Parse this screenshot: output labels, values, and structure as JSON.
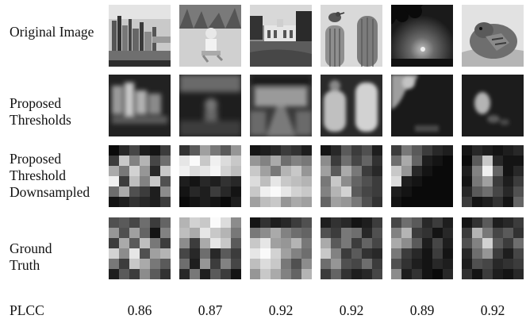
{
  "rows": [
    {
      "label": "Original Image"
    },
    {
      "label": "Proposed\nThresholds"
    },
    {
      "label": "Proposed\nThreshold\nDownsampled"
    },
    {
      "label": "Ground\nTruth"
    }
  ],
  "plcc_label": "PLCC",
  "plcc_values": [
    "0.86",
    "0.87",
    "0.92",
    "0.92",
    "0.89",
    "0.92"
  ],
  "image_subjects": [
    "city-skyline",
    "child-on-beach",
    "building-with-lawn",
    "bird-on-cactus",
    "tree-silhouette-sunset",
    "turtle-close-up"
  ],
  "downsampled_grids": [
    [
      [
        10,
        40,
        70,
        30,
        20,
        60
      ],
      [
        60,
        200,
        130,
        180,
        70,
        110
      ],
      [
        170,
        120,
        210,
        150,
        40,
        200
      ],
      [
        240,
        60,
        190,
        130,
        200,
        80
      ],
      [
        110,
        170,
        80,
        60,
        30,
        140
      ],
      [
        20,
        30,
        50,
        40,
        30,
        60
      ]
    ],
    [
      [
        50,
        90,
        160,
        120,
        90,
        150
      ],
      [
        230,
        250,
        200,
        240,
        220,
        200
      ],
      [
        240,
        220,
        230,
        245,
        210,
        190
      ],
      [
        30,
        20,
        40,
        30,
        50,
        40
      ],
      [
        20,
        40,
        30,
        60,
        40,
        20
      ],
      [
        10,
        20,
        30,
        20,
        10,
        30
      ]
    ],
    [
      [
        20,
        30,
        40,
        60,
        50,
        30
      ],
      [
        150,
        130,
        170,
        110,
        130,
        120
      ],
      [
        200,
        160,
        120,
        180,
        200,
        150
      ],
      [
        220,
        190,
        230,
        200,
        190,
        180
      ],
      [
        200,
        240,
        250,
        230,
        210,
        200
      ],
      [
        160,
        190,
        200,
        150,
        170,
        160
      ]
    ],
    [
      [
        20,
        40,
        90,
        60,
        80,
        30
      ],
      [
        140,
        60,
        110,
        70,
        100,
        50
      ],
      [
        160,
        90,
        170,
        120,
        60,
        40
      ],
      [
        120,
        200,
        140,
        100,
        80,
        60
      ],
      [
        130,
        180,
        210,
        90,
        70,
        60
      ],
      [
        100,
        160,
        150,
        120,
        80,
        50
      ]
    ],
    [
      [
        60,
        120,
        90,
        60,
        40,
        30
      ],
      [
        110,
        170,
        100,
        30,
        20,
        10
      ],
      [
        200,
        150,
        40,
        20,
        10,
        10
      ],
      [
        220,
        30,
        20,
        10,
        10,
        10
      ],
      [
        30,
        20,
        10,
        10,
        10,
        10
      ],
      [
        20,
        10,
        10,
        10,
        10,
        10
      ]
    ],
    [
      [
        20,
        40,
        30,
        20,
        30,
        40
      ],
      [
        10,
        90,
        200,
        40,
        20,
        20
      ],
      [
        30,
        130,
        240,
        100,
        20,
        40
      ],
      [
        20,
        120,
        160,
        60,
        30,
        60
      ],
      [
        40,
        90,
        110,
        70,
        40,
        80
      ],
      [
        60,
        20,
        30,
        50,
        20,
        100
      ]
    ]
  ],
  "ground_truth_grids": [
    [
      [
        80,
        90,
        70,
        110,
        60,
        100
      ],
      [
        150,
        80,
        160,
        100,
        20,
        130
      ],
      [
        60,
        170,
        90,
        190,
        120,
        60
      ],
      [
        210,
        140,
        230,
        80,
        160,
        180
      ],
      [
        120,
        60,
        200,
        170,
        120,
        90
      ],
      [
        30,
        90,
        60,
        140,
        90,
        50
      ]
    ],
    [
      [
        180,
        210,
        200,
        250,
        220,
        140
      ],
      [
        190,
        170,
        230,
        200,
        180,
        120
      ],
      [
        140,
        60,
        170,
        230,
        200,
        90
      ],
      [
        70,
        40,
        110,
        40,
        90,
        60
      ],
      [
        110,
        30,
        150,
        60,
        130,
        70
      ],
      [
        40,
        120,
        30,
        90,
        60,
        20
      ]
    ],
    [
      [
        20,
        50,
        30,
        40,
        60,
        80
      ],
      [
        120,
        140,
        170,
        130,
        110,
        100
      ],
      [
        200,
        230,
        160,
        150,
        180,
        120
      ],
      [
        230,
        250,
        210,
        160,
        130,
        110
      ],
      [
        190,
        220,
        200,
        120,
        80,
        140
      ],
      [
        150,
        200,
        170,
        130,
        100,
        180
      ]
    ],
    [
      [
        30,
        50,
        40,
        20,
        30,
        60
      ],
      [
        80,
        60,
        120,
        110,
        40,
        80
      ],
      [
        170,
        90,
        120,
        60,
        100,
        70
      ],
      [
        200,
        130,
        60,
        90,
        50,
        40
      ],
      [
        110,
        150,
        80,
        70,
        110,
        60
      ],
      [
        60,
        100,
        50,
        30,
        40,
        70
      ]
    ],
    [
      [
        70,
        110,
        90,
        40,
        60,
        30
      ],
      [
        130,
        180,
        60,
        50,
        20,
        40
      ],
      [
        170,
        140,
        90,
        30,
        70,
        30
      ],
      [
        120,
        60,
        40,
        20,
        60,
        20
      ],
      [
        80,
        50,
        30,
        20,
        40,
        30
      ],
      [
        140,
        30,
        50,
        20,
        10,
        40
      ]
    ],
    [
      [
        20,
        50,
        90,
        30,
        40,
        60
      ],
      [
        60,
        180,
        120,
        70,
        90,
        50
      ],
      [
        80,
        130,
        210,
        90,
        60,
        110
      ],
      [
        40,
        110,
        150,
        60,
        30,
        70
      ],
      [
        30,
        80,
        70,
        40,
        50,
        60
      ],
      [
        50,
        20,
        60,
        30,
        20,
        40
      ]
    ]
  ]
}
